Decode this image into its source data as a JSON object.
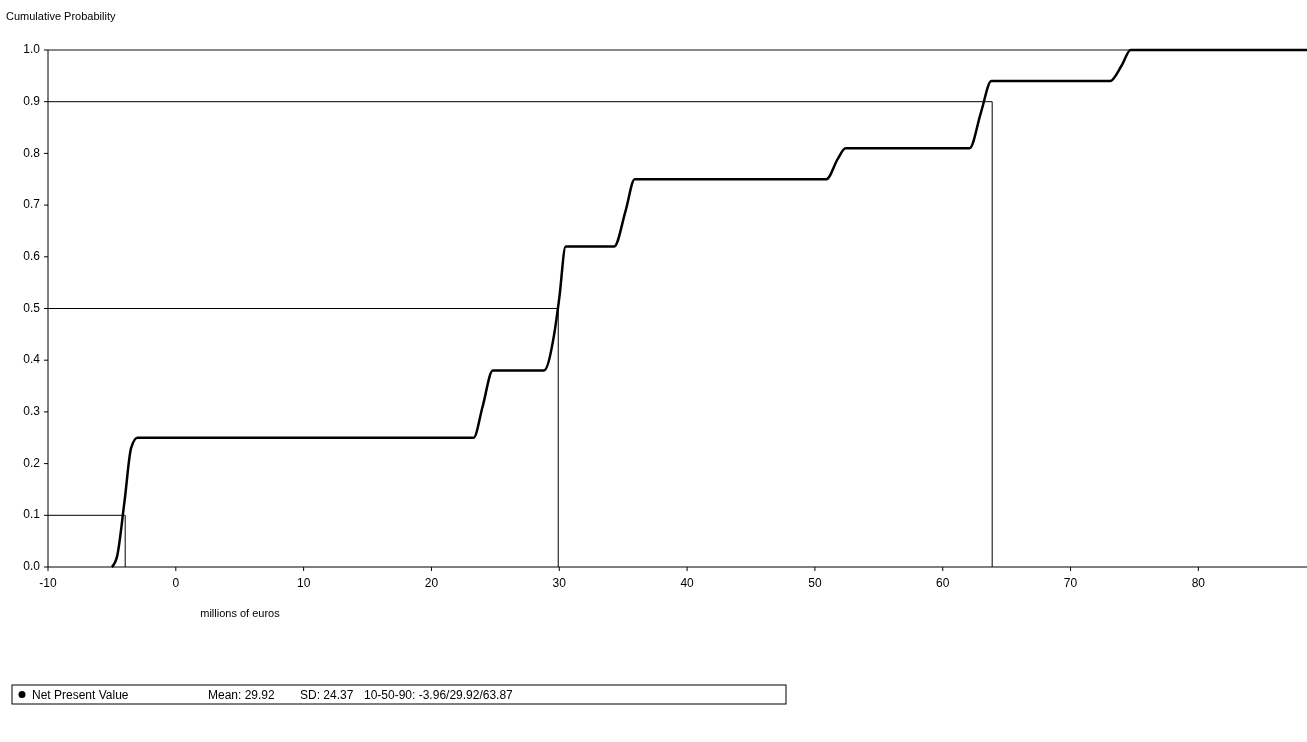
{
  "chart_data": {
    "type": "line",
    "ylabel": "Cumulative Probability",
    "xlabel": "millions of euros",
    "xlim": [
      -10,
      88.5
    ],
    "ylim": [
      0,
      1
    ],
    "xticks": [
      -10,
      0,
      10,
      20,
      30,
      40,
      50,
      60,
      70,
      80
    ],
    "yticks": [
      {
        "value": 0,
        "label": "0.0"
      },
      {
        "value": 0.1,
        "label": "0.1"
      },
      {
        "value": 0.2,
        "label": "0.2"
      },
      {
        "value": 0.3,
        "label": "0.3"
      },
      {
        "value": 0.4,
        "label": "0.4"
      },
      {
        "value": 0.5,
        "label": "0.5"
      },
      {
        "value": 0.6,
        "label": "0.6"
      },
      {
        "value": 0.7,
        "label": "0.7"
      },
      {
        "value": 0.8,
        "label": "0.8"
      },
      {
        "value": 0.9,
        "label": "0.9"
      },
      {
        "value": 1,
        "label": "1.0"
      }
    ],
    "x": [
      -5,
      -4.6,
      -4,
      -3.5,
      -3,
      23.3,
      24,
      24.8,
      28.8,
      29.6,
      30,
      30.5,
      34.3,
      35.2,
      35.9,
      50.9,
      51.8,
      52.4,
      62.1,
      63,
      63.8,
      73.1,
      74,
      74.7,
      88.5
    ],
    "series": [
      {
        "name": "Net Present Value",
        "color": "#000000",
        "values": [
          0,
          0.02,
          0.13,
          0.23,
          0.25,
          0.25,
          0.31,
          0.38,
          0.38,
          0.45,
          0.52,
          0.62,
          0.62,
          0.69,
          0.75,
          0.75,
          0.79,
          0.81,
          0.81,
          0.88,
          0.94,
          0.94,
          0.97,
          1,
          1
        ]
      },
      {
        "color": "#000000",
        "x": [
          -10,
          -3.96,
          -3.96
        ],
        "values": [
          0.1,
          0.1,
          0
        ]
      },
      {
        "color": "#000000",
        "x": [
          -10,
          29.92,
          29.92
        ],
        "values": [
          0.5,
          0.5,
          0
        ]
      },
      {
        "color": "#000000",
        "x": [
          -10,
          63.87,
          63.87
        ],
        "values": [
          0.9,
          0.9,
          0
        ]
      }
    ],
    "annotations": [
      "Mean: 29.92",
      "SD: 24.37",
      "10-50-90: -3.96/29.92/63.87"
    ],
    "legend": "bottom",
    "marker": "none",
    "line_style": "solid",
    "grid": false
  }
}
